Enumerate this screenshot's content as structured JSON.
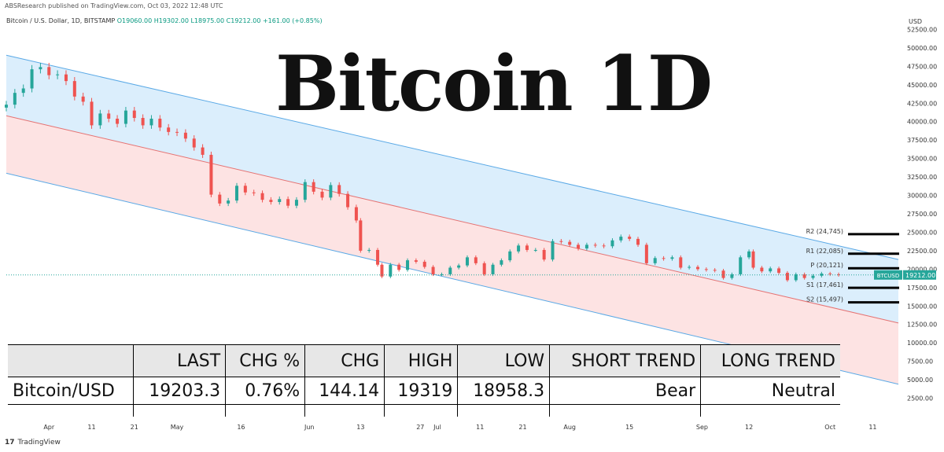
{
  "header": {
    "publisher": "ABSResearch published on TradingView.com, Oct 03, 2022 12:48 UTC",
    "symbol": "Bitcoin / U.S. Dollar, 1D, BITSTAMP",
    "open": "O19060.00",
    "high": "H19302.00",
    "low": "L18975.00",
    "close": "C19212.00",
    "change": "+161.00 (+0.85%)"
  },
  "title": "Bitcoin 1D",
  "footer": {
    "brand": "TradingView",
    "logo_glyph": "17"
  },
  "colors": {
    "up": "#26a69a",
    "down": "#ef5350",
    "channel_upper_fill": "#dbeefc",
    "channel_lower_fill": "#fde3e3",
    "channel_line_blue": "#5aa9e6",
    "channel_line_red": "#e57373",
    "price_label": "#26a69a"
  },
  "chart_data": {
    "type": "candlestick",
    "currency": "USD",
    "y_ticks": [
      "52500.00",
      "50000.00",
      "47500.00",
      "45000.00",
      "42500.00",
      "40000.00",
      "37500.00",
      "35000.00",
      "32500.00",
      "30000.00",
      "27500.00",
      "25000.00",
      "22500.00",
      "20000.00",
      "17500.00",
      "15000.00",
      "12500.00",
      "10000.00",
      "7500.00",
      "5000.00",
      "2500.00"
    ],
    "ylim": [
      0,
      55000
    ],
    "x_range": [
      "2022-03-22",
      "2022-10-17"
    ],
    "x_ticks": [
      {
        "date": "2022-04-01",
        "label": "Apr"
      },
      {
        "date": "2022-04-11",
        "label": "11"
      },
      {
        "date": "2022-04-21",
        "label": "21"
      },
      {
        "date": "2022-05-01",
        "label": "May"
      },
      {
        "date": "2022-05-16",
        "label": "16"
      },
      {
        "date": "2022-06-01",
        "label": "Jun"
      },
      {
        "date": "2022-06-13",
        "label": "13"
      },
      {
        "date": "2022-06-27",
        "label": "27"
      },
      {
        "date": "2022-07-01",
        "label": "Jul"
      },
      {
        "date": "2022-07-11",
        "label": "11"
      },
      {
        "date": "2022-07-21",
        "label": "21"
      },
      {
        "date": "2022-08-01",
        "label": "Aug"
      },
      {
        "date": "2022-08-15",
        "label": "15"
      },
      {
        "date": "2022-09-01",
        "label": "Sep"
      },
      {
        "date": "2022-09-12",
        "label": "12"
      },
      {
        "date": "2022-10-01",
        "label": "Oct"
      },
      {
        "date": "2022-10-11",
        "label": "11"
      }
    ],
    "channel": {
      "upper": [
        [
          "2022-03-22",
          49000
        ],
        [
          "2022-10-17",
          21300
        ]
      ],
      "middle": [
        [
          "2022-03-22",
          40800
        ],
        [
          "2022-10-17",
          12700
        ]
      ],
      "lower": [
        [
          "2022-03-22",
          33000
        ],
        [
          "2022-10-17",
          4400
        ]
      ]
    },
    "pivots": [
      {
        "label": "R2 (24,745)",
        "value": 24745
      },
      {
        "label": "R1 (22,085)",
        "value": 22085
      },
      {
        "label": "P (20,121)",
        "value": 20121
      },
      {
        "label": "S1 (17,461)",
        "value": 17461
      },
      {
        "label": "S2 (15,497)",
        "value": 15497
      }
    ],
    "last_price": {
      "symbol": "BTCUSD",
      "value": "19212.00",
      "numeric": 19212
    },
    "candles_close": [
      [
        "2022-03-22",
        42300
      ],
      [
        "2022-03-24",
        43900
      ],
      [
        "2022-03-26",
        44500
      ],
      [
        "2022-03-28",
        47100
      ],
      [
        "2022-03-30",
        47400
      ],
      [
        "2022-04-01",
        46300
      ],
      [
        "2022-04-03",
        46400
      ],
      [
        "2022-04-05",
        45500
      ],
      [
        "2022-04-07",
        43400
      ],
      [
        "2022-04-09",
        42700
      ],
      [
        "2022-04-11",
        39500
      ],
      [
        "2022-04-13",
        41100
      ],
      [
        "2022-04-15",
        40400
      ],
      [
        "2022-04-17",
        39700
      ],
      [
        "2022-04-19",
        41500
      ],
      [
        "2022-04-21",
        40500
      ],
      [
        "2022-04-23",
        39500
      ],
      [
        "2022-04-25",
        40400
      ],
      [
        "2022-04-27",
        39200
      ],
      [
        "2022-04-29",
        38600
      ],
      [
        "2022-05-01",
        38500
      ],
      [
        "2022-05-03",
        37700
      ],
      [
        "2022-05-05",
        36500
      ],
      [
        "2022-05-07",
        35500
      ],
      [
        "2022-05-09",
        30100
      ],
      [
        "2022-05-11",
        28900
      ],
      [
        "2022-05-13",
        29300
      ],
      [
        "2022-05-15",
        31300
      ],
      [
        "2022-05-17",
        30400
      ],
      [
        "2022-05-19",
        30300
      ],
      [
        "2022-05-21",
        29400
      ],
      [
        "2022-05-23",
        29100
      ],
      [
        "2022-05-25",
        29500
      ],
      [
        "2022-05-27",
        28600
      ],
      [
        "2022-05-29",
        29400
      ],
      [
        "2022-05-31",
        31800
      ],
      [
        "2022-06-02",
        30500
      ],
      [
        "2022-06-04",
        29700
      ],
      [
        "2022-06-06",
        31400
      ],
      [
        "2022-06-08",
        30200
      ],
      [
        "2022-06-10",
        28400
      ],
      [
        "2022-06-12",
        26600
      ],
      [
        "2022-06-13",
        22500
      ],
      [
        "2022-06-15",
        22600
      ],
      [
        "2022-06-17",
        20600
      ],
      [
        "2022-06-18",
        19000
      ],
      [
        "2022-06-20",
        20600
      ],
      [
        "2022-06-22",
        19900
      ],
      [
        "2022-06-24",
        21200
      ],
      [
        "2022-06-26",
        21000
      ],
      [
        "2022-06-28",
        20300
      ],
      [
        "2022-06-30",
        19300
      ],
      [
        "2022-07-02",
        19300
      ],
      [
        "2022-07-04",
        20200
      ],
      [
        "2022-07-06",
        20500
      ],
      [
        "2022-07-08",
        21600
      ],
      [
        "2022-07-10",
        20800
      ],
      [
        "2022-07-12",
        19300
      ],
      [
        "2022-07-14",
        20600
      ],
      [
        "2022-07-16",
        21200
      ],
      [
        "2022-07-18",
        22400
      ],
      [
        "2022-07-20",
        23200
      ],
      [
        "2022-07-22",
        22600
      ],
      [
        "2022-07-24",
        22600
      ],
      [
        "2022-07-26",
        21300
      ],
      [
        "2022-07-28",
        23800
      ],
      [
        "2022-07-30",
        23700
      ],
      [
        "2022-08-01",
        23300
      ],
      [
        "2022-08-03",
        22800
      ],
      [
        "2022-08-05",
        23300
      ],
      [
        "2022-08-07",
        23200
      ],
      [
        "2022-08-09",
        23100
      ],
      [
        "2022-08-11",
        23900
      ],
      [
        "2022-08-13",
        24400
      ],
      [
        "2022-08-15",
        24100
      ],
      [
        "2022-08-17",
        23300
      ],
      [
        "2022-08-19",
        20800
      ],
      [
        "2022-08-21",
        21500
      ],
      [
        "2022-08-23",
        21400
      ],
      [
        "2022-08-25",
        21600
      ],
      [
        "2022-08-27",
        20200
      ],
      [
        "2022-08-29",
        20300
      ],
      [
        "2022-08-31",
        20000
      ],
      [
        "2022-09-02",
        19900
      ],
      [
        "2022-09-04",
        19800
      ],
      [
        "2022-09-06",
        18800
      ],
      [
        "2022-09-08",
        19300
      ],
      [
        "2022-09-10",
        21600
      ],
      [
        "2022-09-12",
        22400
      ],
      [
        "2022-09-13",
        20200
      ],
      [
        "2022-09-15",
        19700
      ],
      [
        "2022-09-17",
        20100
      ],
      [
        "2022-09-19",
        19500
      ],
      [
        "2022-09-21",
        18500
      ],
      [
        "2022-09-23",
        19300
      ],
      [
        "2022-09-25",
        18800
      ],
      [
        "2022-09-27",
        19100
      ],
      [
        "2022-09-29",
        19400
      ],
      [
        "2022-10-01",
        19300
      ],
      [
        "2022-10-03",
        19212
      ]
    ]
  },
  "table": {
    "headers": [
      "",
      "LAST",
      "CHG %",
      "CHG",
      "HIGH",
      "LOW",
      "SHORT TREND",
      "LONG TREND"
    ],
    "row": [
      "Bitcoin/USD",
      "19203.3",
      "0.76%",
      "144.14",
      "19319",
      "18958.3",
      "Bear",
      "Neutral"
    ]
  }
}
